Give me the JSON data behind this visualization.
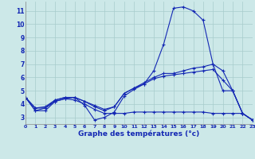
{
  "xlabel": "Graphe des températures (°c)",
  "background_color": "#cce8e8",
  "grid_color": "#a8cccc",
  "line_color": "#1428b4",
  "xlim_min": 0,
  "xlim_max": 23,
  "ylim_min": 2.5,
  "ylim_max": 11.7,
  "xticks": [
    0,
    1,
    2,
    3,
    4,
    5,
    6,
    7,
    8,
    9,
    10,
    11,
    12,
    13,
    14,
    15,
    16,
    17,
    18,
    19,
    20,
    21,
    22,
    23
  ],
  "yticks": [
    3,
    4,
    5,
    6,
    7,
    8,
    9,
    10,
    11
  ],
  "curve1": [
    4.5,
    3.5,
    3.5,
    4.2,
    4.4,
    4.5,
    3.9,
    2.8,
    3.0,
    3.4,
    4.6,
    5.1,
    5.5,
    6.5,
    8.5,
    11.2,
    11.3,
    11.0,
    10.3,
    7.0,
    5.0,
    5.0,
    3.3,
    2.8
  ],
  "curve2": [
    4.5,
    3.7,
    3.7,
    4.3,
    4.5,
    4.5,
    4.2,
    3.8,
    3.5,
    3.8,
    4.8,
    5.2,
    5.6,
    6.0,
    6.3,
    6.3,
    6.5,
    6.7,
    6.8,
    7.0,
    6.5,
    5.0,
    3.3,
    2.8
  ],
  "curve3": [
    4.5,
    3.7,
    3.8,
    4.3,
    4.5,
    4.5,
    4.2,
    3.9,
    3.6,
    3.8,
    4.8,
    5.2,
    5.5,
    5.9,
    6.1,
    6.2,
    6.3,
    6.4,
    6.5,
    6.6,
    5.8,
    5.0,
    3.3,
    2.8
  ],
  "curve4": [
    4.5,
    3.5,
    3.7,
    4.2,
    4.4,
    4.3,
    4.0,
    3.6,
    3.3,
    3.3,
    3.3,
    3.4,
    3.4,
    3.4,
    3.4,
    3.4,
    3.4,
    3.4,
    3.4,
    3.3,
    3.3,
    3.3,
    3.3,
    2.8
  ]
}
